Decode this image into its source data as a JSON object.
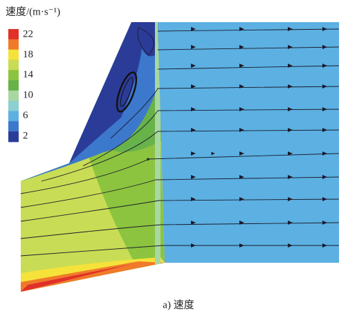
{
  "legend": {
    "title": "速度/(m·s⁻¹)",
    "ticks": [
      22,
      18,
      14,
      10,
      6,
      2
    ],
    "colors": [
      "#e0302a",
      "#f07a2a",
      "#f5e23a",
      "#c9dc55",
      "#8cc43f",
      "#68b24a",
      "#a8d7a2",
      "#8ccfd0",
      "#5cb0e2",
      "#3c78cc",
      "#2b3c98"
    ]
  },
  "caption": "a) 速度"
}
